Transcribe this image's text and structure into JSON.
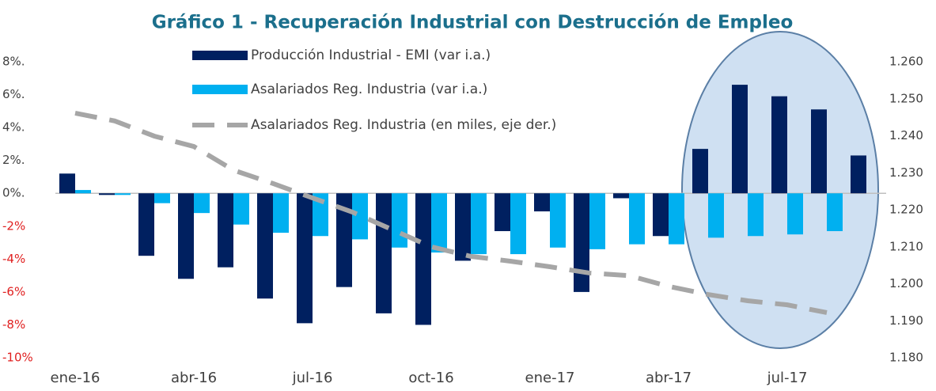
{
  "chart_data": {
    "type": "bar-line",
    "title": "Gráfico 1 - Recuperación Industrial con Destrucción de Empleo",
    "categories": [
      "ene-16",
      null,
      null,
      "abr-16",
      null,
      null,
      "jul-16",
      null,
      null,
      "oct-16",
      null,
      null,
      "ene-17",
      null,
      null,
      "abr-17",
      null,
      null,
      "jul-17",
      null,
      null
    ],
    "series": [
      {
        "name": "Producción Industrial - EMI (var i.a.)",
        "color": "#002060",
        "kind": "bar",
        "values": [
          1.2,
          -0.1,
          -3.8,
          -5.2,
          -4.5,
          -6.4,
          -7.9,
          -5.7,
          -7.3,
          -8.0,
          -4.1,
          -2.3,
          -1.1,
          -6.0,
          -0.3,
          -2.6,
          2.7,
          6.6,
          5.9,
          5.1,
          2.3
        ]
      },
      {
        "name": "Asalariados Reg. Industria (var i.a.)",
        "color": "#00b0f0",
        "kind": "bar",
        "values": [
          0.2,
          -0.1,
          -0.6,
          -1.2,
          -1.9,
          -2.4,
          -2.6,
          -2.8,
          -3.3,
          -3.6,
          -3.7,
          -3.7,
          -3.3,
          -3.4,
          -3.1,
          -3.1,
          -2.7,
          -2.6,
          -2.5,
          -2.3,
          null
        ]
      },
      {
        "name": "Asalariados Reg. Industria (en miles, eje der.)",
        "color": "#a6a6a6",
        "kind": "line",
        "axis": "y2",
        "values": [
          1246.1,
          1244.0,
          1239.9,
          1237.1,
          1230.7,
          1227.1,
          1223.2,
          1219.4,
          1214.7,
          1210.0,
          1207.4,
          1206.1,
          1204.6,
          1202.9,
          1202.2,
          1199.3,
          1197.1,
          1195.4,
          1194.3,
          1192.2,
          null
        ]
      }
    ],
    "ylim": [
      -10,
      8
    ],
    "yticks": [
      {
        "value": 8,
        "label": "8%."
      },
      {
        "value": 6,
        "label": "6%."
      },
      {
        "value": 4,
        "label": "4%."
      },
      {
        "value": 2,
        "label": "2%."
      },
      {
        "value": 0,
        "label": "0%."
      },
      {
        "value": -2,
        "label": "-2%"
      },
      {
        "value": -4,
        "label": "-4%"
      },
      {
        "value": -6,
        "label": "-6%"
      },
      {
        "value": -8,
        "label": "-8%"
      },
      {
        "value": -10,
        "label": "-10%"
      }
    ],
    "negative_tick_color": "#e02020",
    "y2lim": [
      1180,
      1260
    ],
    "y2ticks": [
      {
        "value": 1260,
        "label": "1.260"
      },
      {
        "value": 1250,
        "label": "1.250"
      },
      {
        "value": 1240,
        "label": "1.240"
      },
      {
        "value": 1230,
        "label": "1.230"
      },
      {
        "value": 1220,
        "label": "1.220"
      },
      {
        "value": 1210,
        "label": "1.210"
      },
      {
        "value": 1200,
        "label": "1.200"
      },
      {
        "value": 1190,
        "label": "1.190"
      },
      {
        "value": 1180,
        "label": "1.180"
      }
    ],
    "legend": "top"
  }
}
